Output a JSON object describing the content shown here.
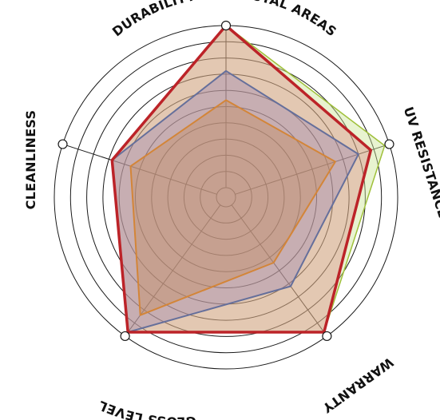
{
  "chart_data": {
    "type": "radar",
    "title": "",
    "axes": [
      "DURABILITY IN COASTAL AREAS",
      "UV RESISTANCE",
      "WARRANTY",
      "GLOSS LEVEL",
      "CLEANLINESS"
    ],
    "range": [
      0,
      10
    ],
    "rings": 10,
    "grid": true,
    "legend": "none",
    "series": [
      {
        "values": [
          10,
          9.7,
          9.7,
          9.7,
          6.8
        ],
        "color": "#9fc03a",
        "fill": "rgba(205,228,150,0.45)",
        "stroke_width": 1.5
      },
      {
        "values": [
          7.2,
          8.0,
          6.2,
          9.7,
          6.8
        ],
        "color": "#3a78b0",
        "fill": "rgba(120,140,210,0.35)",
        "stroke_width": 2
      },
      {
        "values": [
          5.4,
          6.5,
          4.4,
          8.4,
          5.6
        ],
        "color": "#d29628",
        "fill": "rgba(190,160,90,0.40)",
        "stroke_width": 2
      },
      {
        "values": [
          10,
          8.8,
          9.7,
          9.7,
          6.8
        ],
        "color": "#bc2328",
        "fill": "rgba(215,90,100,0.28)",
        "stroke_width": 3.5
      }
    ]
  }
}
